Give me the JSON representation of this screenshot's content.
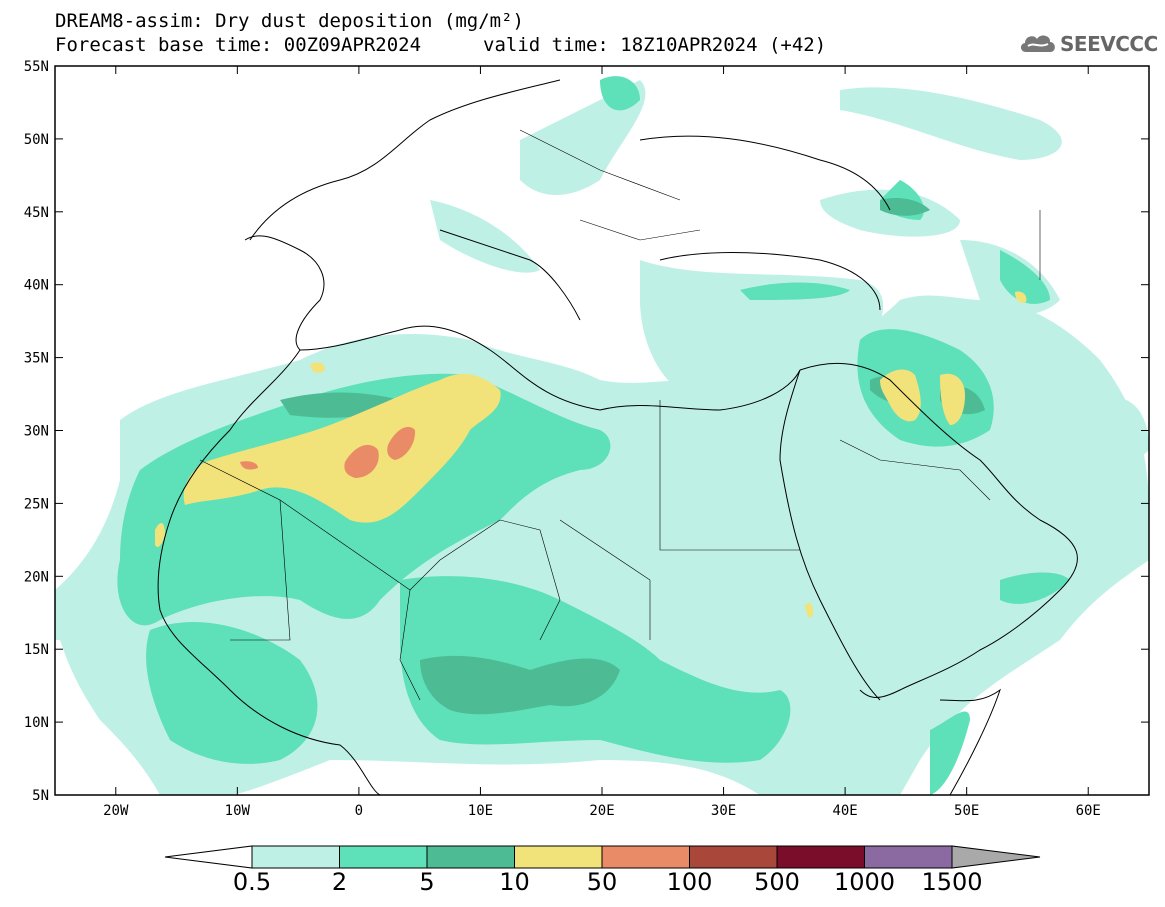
{
  "header": {
    "title": "DREAM8-assim: Dry dust deposition (mg/m²)",
    "base_time": "Forecast base time: 00Z09APR2024",
    "valid_time": "valid time: 18Z10APR2024 (+42)"
  },
  "logo": {
    "text": "SEEVCCC",
    "icon": "cloud-icon"
  },
  "axes": {
    "lat_labels": [
      "55N",
      "50N",
      "45N",
      "40N",
      "35N",
      "30N",
      "25N",
      "20N",
      "15N",
      "10N",
      "5N"
    ],
    "lon_labels": [
      "20W",
      "10W",
      "0",
      "10E",
      "20E",
      "30E",
      "40E",
      "50E",
      "60E"
    ],
    "lat_values": [
      55,
      50,
      45,
      40,
      35,
      30,
      25,
      20,
      15,
      10,
      5
    ],
    "lon_values": [
      -20,
      -10,
      0,
      10,
      20,
      30,
      40,
      50,
      60
    ],
    "lon_range": [
      -25,
      65
    ],
    "lat_range": [
      5,
      55
    ]
  },
  "colorbar": {
    "labels": [
      "0.5",
      "2",
      "5",
      "10",
      "50",
      "100",
      "500",
      "1000",
      "1500"
    ],
    "colors": [
      "#bff0e6",
      "#5ee0b8",
      "#4dbb94",
      "#f2e27a",
      "#e88b66",
      "#a8473a",
      "#7a0e2a",
      "#8a6aa0"
    ],
    "under_color": "#ffffff",
    "over_color": "#a9a9a9"
  }
}
